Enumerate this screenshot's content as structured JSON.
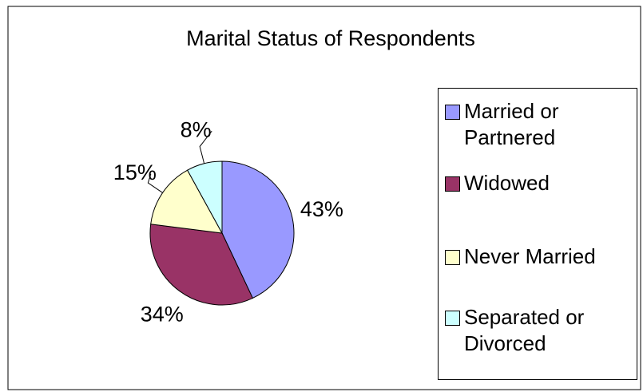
{
  "chart_data": {
    "type": "pie",
    "title": "Marital Status of Respondents",
    "categories": [
      "Married or Partnered",
      "Widowed",
      "Never Married",
      "Separated or Divorced"
    ],
    "values": [
      43,
      34,
      15,
      8
    ],
    "value_labels": [
      "43%",
      "34%",
      "15%",
      "8%"
    ],
    "colors": [
      "#9999ff",
      "#993366",
      "#ffffcc",
      "#ccffff"
    ],
    "legend": "right"
  }
}
